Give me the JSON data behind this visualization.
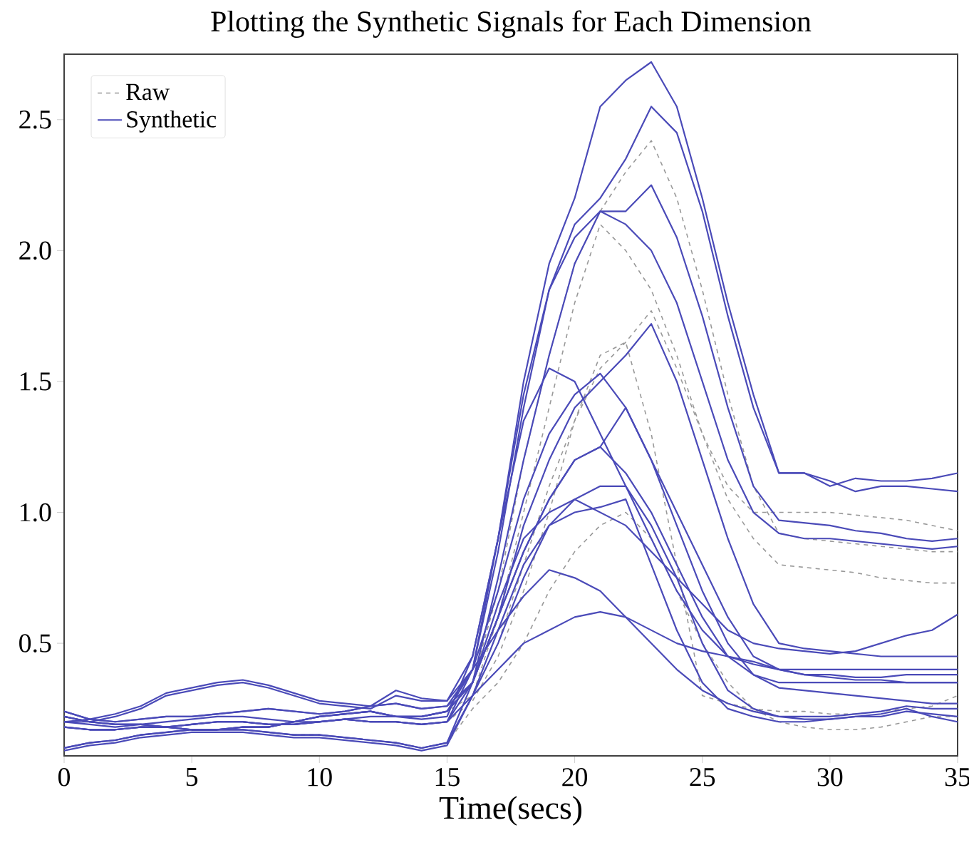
{
  "chart_data": {
    "type": "line",
    "title": "Plotting the Synthetic Signals for Each Dimension",
    "xlabel": "Time(secs)",
    "x": [
      0,
      1,
      2,
      3,
      4,
      5,
      6,
      7,
      8,
      9,
      10,
      11,
      12,
      13,
      14,
      15,
      16,
      17,
      18,
      19,
      20,
      21,
      22,
      23,
      24,
      25,
      26,
      27,
      28,
      29,
      30,
      31,
      32,
      33,
      34,
      35
    ],
    "xlim": [
      0,
      35
    ],
    "xticks": [
      0,
      5,
      10,
      15,
      20,
      25,
      30,
      35
    ],
    "ylim": [
      0.07,
      2.75
    ],
    "yticks": [
      {
        "value": 0.5,
        "label": "0.5"
      },
      {
        "value": 1.0,
        "label": "1.0"
      },
      {
        "value": 1.5,
        "label": "1.5"
      },
      {
        "value": 2.0,
        "label": "2.0"
      },
      {
        "value": 2.5,
        "label": "2.5"
      }
    ],
    "legend": "top left",
    "series": [
      {
        "name": "Raw",
        "color": "#999999",
        "line_style": "dashed",
        "values": [
          0.18,
          0.17,
          0.17,
          0.18,
          0.18,
          0.19,
          0.2,
          0.2,
          0.19,
          0.19,
          0.2,
          0.21,
          0.2,
          0.2,
          0.19,
          0.2,
          0.35,
          0.7,
          1.2,
          1.6,
          1.95,
          2.15,
          2.3,
          2.42,
          2.2,
          1.85,
          1.45,
          1.1,
          0.92,
          0.9,
          0.89,
          0.88,
          0.87,
          0.86,
          0.85,
          0.85
        ]
      },
      {
        "color": "#999999",
        "line_style": "dashed",
        "values": [
          0.1,
          0.12,
          0.13,
          0.15,
          0.16,
          0.17,
          0.17,
          0.17,
          0.16,
          0.15,
          0.15,
          0.14,
          0.13,
          0.12,
          0.1,
          0.12,
          0.3,
          0.6,
          1.0,
          1.4,
          1.8,
          2.1,
          2.0,
          1.85,
          1.6,
          1.3,
          1.05,
          0.9,
          0.8,
          0.79,
          0.78,
          0.77,
          0.75,
          0.74,
          0.73,
          0.73
        ]
      },
      {
        "color": "#999999",
        "line_style": "dashed",
        "values": [
          0.22,
          0.2,
          0.19,
          0.19,
          0.18,
          0.17,
          0.17,
          0.18,
          0.18,
          0.2,
          0.22,
          0.23,
          0.24,
          0.22,
          0.22,
          0.24,
          0.3,
          0.5,
          0.8,
          1.1,
          1.35,
          1.55,
          1.65,
          1.77,
          1.55,
          1.3,
          1.1,
          1.0,
          1.0,
          1.0,
          1.0,
          0.99,
          0.98,
          0.97,
          0.95,
          0.93
        ]
      },
      {
        "color": "#999999",
        "line_style": "dashed",
        "values": [
          0.18,
          0.17,
          0.17,
          0.18,
          0.18,
          0.19,
          0.2,
          0.2,
          0.19,
          0.19,
          0.2,
          0.21,
          0.2,
          0.2,
          0.19,
          0.2,
          0.28,
          0.45,
          0.7,
          1.0,
          1.35,
          1.6,
          1.65,
          1.3,
          0.8,
          0.3,
          0.27,
          0.25,
          0.24,
          0.24,
          0.23,
          0.23,
          0.24,
          0.25,
          0.26,
          0.3
        ]
      },
      {
        "color": "#999999",
        "line_style": "dashed",
        "values": [
          0.1,
          0.12,
          0.13,
          0.15,
          0.16,
          0.17,
          0.17,
          0.17,
          0.16,
          0.15,
          0.15,
          0.14,
          0.13,
          0.12,
          0.1,
          0.12,
          0.25,
          0.35,
          0.5,
          0.7,
          0.85,
          0.95,
          1.0,
          0.9,
          0.7,
          0.5,
          0.35,
          0.25,
          0.2,
          0.18,
          0.17,
          0.17,
          0.18,
          0.2,
          0.22,
          0.22
        ]
      },
      {
        "name": "Synthetic",
        "color": "#4a4ab8",
        "line_style": "solid",
        "values": [
          0.2,
          0.19,
          0.18,
          0.19,
          0.2,
          0.21,
          0.22,
          0.22,
          0.21,
          0.2,
          0.2,
          0.21,
          0.22,
          0.22,
          0.21,
          0.22,
          0.45,
          0.9,
          1.5,
          1.95,
          2.2,
          2.55,
          2.65,
          2.72,
          2.55,
          2.2,
          1.8,
          1.45,
          1.15,
          1.15,
          1.1,
          1.13,
          1.12,
          1.12,
          1.13,
          1.15
        ]
      },
      {
        "color": "#4a4ab8",
        "line_style": "solid",
        "values": [
          0.18,
          0.17,
          0.17,
          0.18,
          0.18,
          0.19,
          0.2,
          0.2,
          0.19,
          0.19,
          0.2,
          0.21,
          0.2,
          0.2,
          0.19,
          0.2,
          0.4,
          0.85,
          1.4,
          1.85,
          2.1,
          2.2,
          2.35,
          2.55,
          2.45,
          2.15,
          1.75,
          1.4,
          1.15,
          1.15,
          1.12,
          1.08,
          1.1,
          1.1,
          1.09,
          1.08
        ]
      },
      {
        "color": "#4a4ab8",
        "line_style": "solid",
        "values": [
          0.22,
          0.2,
          0.19,
          0.19,
          0.18,
          0.17,
          0.17,
          0.18,
          0.18,
          0.2,
          0.22,
          0.23,
          0.24,
          0.22,
          0.22,
          0.24,
          0.35,
          0.75,
          1.2,
          1.6,
          1.95,
          2.15,
          2.15,
          2.25,
          2.05,
          1.75,
          1.4,
          1.1,
          0.97,
          0.96,
          0.95,
          0.93,
          0.92,
          0.9,
          0.89,
          0.9
        ]
      },
      {
        "color": "#4a4ab8",
        "line_style": "solid",
        "values": [
          0.2,
          0.2,
          0.22,
          0.25,
          0.3,
          0.32,
          0.34,
          0.35,
          0.33,
          0.3,
          0.27,
          0.26,
          0.25,
          0.3,
          0.28,
          0.28,
          0.4,
          0.9,
          1.45,
          1.85,
          2.05,
          2.15,
          2.1,
          2.0,
          1.8,
          1.5,
          1.2,
          1.0,
          0.92,
          0.9,
          0.9,
          0.89,
          0.88,
          0.87,
          0.86,
          0.87
        ]
      },
      {
        "color": "#4a4ab8",
        "line_style": "solid",
        "values": [
          0.1,
          0.12,
          0.13,
          0.15,
          0.16,
          0.17,
          0.17,
          0.17,
          0.16,
          0.15,
          0.15,
          0.14,
          0.13,
          0.12,
          0.1,
          0.12,
          0.35,
          0.6,
          0.95,
          1.2,
          1.4,
          1.5,
          1.6,
          1.72,
          1.5,
          1.2,
          0.9,
          0.65,
          0.5,
          0.48,
          0.47,
          0.46,
          0.45,
          0.45,
          0.45,
          0.45
        ]
      },
      {
        "color": "#4a4ab8",
        "line_style": "solid",
        "values": [
          0.24,
          0.21,
          0.2,
          0.21,
          0.22,
          0.22,
          0.23,
          0.24,
          0.25,
          0.24,
          0.23,
          0.24,
          0.26,
          0.27,
          0.25,
          0.26,
          0.4,
          0.7,
          1.05,
          1.3,
          1.45,
          1.53,
          1.4,
          1.2,
          1.0,
          0.8,
          0.6,
          0.45,
          0.4,
          0.38,
          0.38,
          0.37,
          0.37,
          0.38,
          0.38,
          0.38
        ]
      },
      {
        "color": "#4a4ab8",
        "line_style": "solid",
        "values": [
          0.2,
          0.21,
          0.23,
          0.26,
          0.31,
          0.33,
          0.35,
          0.36,
          0.34,
          0.31,
          0.28,
          0.27,
          0.26,
          0.32,
          0.29,
          0.28,
          0.45,
          0.9,
          1.35,
          1.55,
          1.5,
          1.3,
          1.1,
          0.9,
          0.7,
          0.55,
          0.45,
          0.42,
          0.4,
          0.4,
          0.4,
          0.4,
          0.4,
          0.4,
          0.4,
          0.4
        ]
      },
      {
        "color": "#4a4ab8",
        "line_style": "solid",
        "values": [
          0.18,
          0.17,
          0.17,
          0.18,
          0.18,
          0.19,
          0.2,
          0.2,
          0.19,
          0.19,
          0.2,
          0.21,
          0.2,
          0.2,
          0.19,
          0.2,
          0.35,
          0.6,
          0.85,
          1.05,
          1.2,
          1.25,
          1.15,
          1.0,
          0.8,
          0.6,
          0.45,
          0.38,
          0.35,
          0.35,
          0.35,
          0.35,
          0.35,
          0.35,
          0.35,
          0.35
        ]
      },
      {
        "color": "#4a4ab8",
        "line_style": "solid",
        "values": [
          0.1,
          0.12,
          0.13,
          0.15,
          0.16,
          0.17,
          0.17,
          0.17,
          0.16,
          0.15,
          0.15,
          0.14,
          0.13,
          0.12,
          0.1,
          0.12,
          0.3,
          0.5,
          0.75,
          0.95,
          1.05,
          1.1,
          1.1,
          0.95,
          0.75,
          0.5,
          0.32,
          0.25,
          0.22,
          0.22,
          0.22,
          0.23,
          0.24,
          0.26,
          0.25,
          0.25
        ]
      },
      {
        "color": "#4a4ab8",
        "line_style": "solid",
        "values": [
          0.22,
          0.2,
          0.19,
          0.19,
          0.18,
          0.17,
          0.17,
          0.18,
          0.18,
          0.2,
          0.22,
          0.23,
          0.24,
          0.22,
          0.22,
          0.24,
          0.4,
          0.55,
          0.68,
          0.78,
          0.75,
          0.7,
          0.6,
          0.55,
          0.5,
          0.47,
          0.45,
          0.43,
          0.4,
          0.38,
          0.37,
          0.36,
          0.36,
          0.35,
          0.35,
          0.35
        ]
      },
      {
        "color": "#4a4ab8",
        "line_style": "solid",
        "values": [
          0.09,
          0.11,
          0.12,
          0.14,
          0.15,
          0.16,
          0.16,
          0.16,
          0.15,
          0.14,
          0.14,
          0.13,
          0.12,
          0.11,
          0.09,
          0.11,
          0.3,
          0.4,
          0.5,
          0.55,
          0.6,
          0.62,
          0.6,
          0.5,
          0.4,
          0.32,
          0.27,
          0.24,
          0.22,
          0.21,
          0.21,
          0.22,
          0.23,
          0.25,
          0.22,
          0.2
        ]
      },
      {
        "color": "#4a4ab8",
        "line_style": "solid",
        "values": [
          0.24,
          0.21,
          0.2,
          0.21,
          0.22,
          0.22,
          0.23,
          0.24,
          0.25,
          0.24,
          0.23,
          0.24,
          0.26,
          0.27,
          0.25,
          0.26,
          0.35,
          0.65,
          0.9,
          1.0,
          1.05,
          1.0,
          0.95,
          0.85,
          0.75,
          0.65,
          0.55,
          0.5,
          0.48,
          0.47,
          0.46,
          0.47,
          0.5,
          0.53,
          0.55,
          0.61
        ]
      },
      {
        "color": "#4a4ab8",
        "line_style": "solid",
        "values": [
          0.18,
          0.17,
          0.17,
          0.18,
          0.18,
          0.19,
          0.2,
          0.2,
          0.19,
          0.19,
          0.2,
          0.21,
          0.2,
          0.2,
          0.19,
          0.2,
          0.3,
          0.55,
          0.8,
          0.95,
          1.0,
          1.02,
          1.05,
          0.8,
          0.55,
          0.35,
          0.25,
          0.22,
          0.2,
          0.2,
          0.21,
          0.22,
          0.22,
          0.24,
          0.23,
          0.22
        ]
      },
      {
        "color": "#4a4ab8",
        "line_style": "solid",
        "values": [
          0.22,
          0.2,
          0.19,
          0.19,
          0.18,
          0.17,
          0.17,
          0.18,
          0.18,
          0.2,
          0.22,
          0.23,
          0.24,
          0.22,
          0.22,
          0.24,
          0.35,
          0.6,
          0.85,
          1.05,
          1.2,
          1.25,
          1.4,
          1.2,
          0.95,
          0.7,
          0.5,
          0.38,
          0.33,
          0.32,
          0.31,
          0.3,
          0.29,
          0.28,
          0.27,
          0.27
        ]
      }
    ]
  }
}
